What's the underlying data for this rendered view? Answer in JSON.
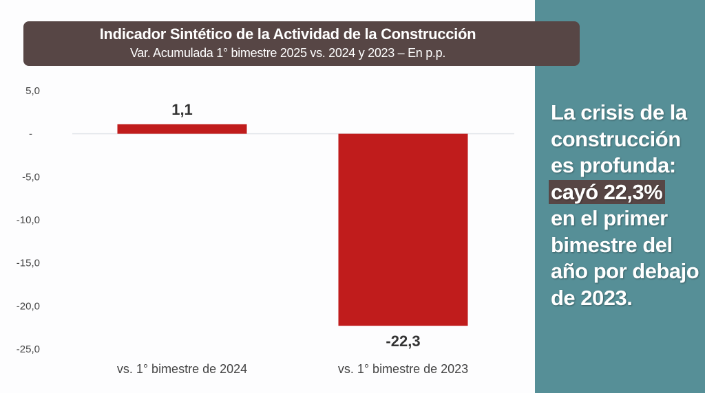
{
  "header": {
    "title": "Indicador Sintético de la Actividad de la Construcción",
    "subtitle": "Var. Acumulada 1° bimestre 2025 vs. 2024 y 2023 – En p.p."
  },
  "colors": {
    "bar": "#c01c1c",
    "title_bg": "#574645",
    "side_bg": "#568f97"
  },
  "chart_data": {
    "type": "bar",
    "title": "Indicador Sintético de la Actividad de la Construcción",
    "subtitle": "Var. Acumulada 1° bimestre 2025 vs. 2024 y 2023 – En p.p.",
    "categories": [
      "vs. 1° bimestre de 2024",
      "vs. 1° bimestre de 2023"
    ],
    "values": [
      1.1,
      -22.3
    ],
    "value_labels": [
      "1,1",
      "-22,3"
    ],
    "xlabel": "",
    "ylabel": "",
    "ylim": [
      -25,
      5
    ],
    "yticks": [
      5,
      0,
      -5,
      -10,
      -15,
      -20,
      -25
    ],
    "ytick_labels": [
      "5,0",
      "-",
      "-5,0",
      "-10,0",
      "-15,0",
      "-20,0",
      "-25,0"
    ],
    "grid": false,
    "legend": "none"
  },
  "side": {
    "line1": "La crisis de la",
    "line2": "construcción",
    "line3": "es profunda:",
    "highlight": "cayó 22,3%",
    "line5": "en el primer",
    "line6": "bimestre del",
    "line7": "año por debajo",
    "line8": "de 2023."
  }
}
